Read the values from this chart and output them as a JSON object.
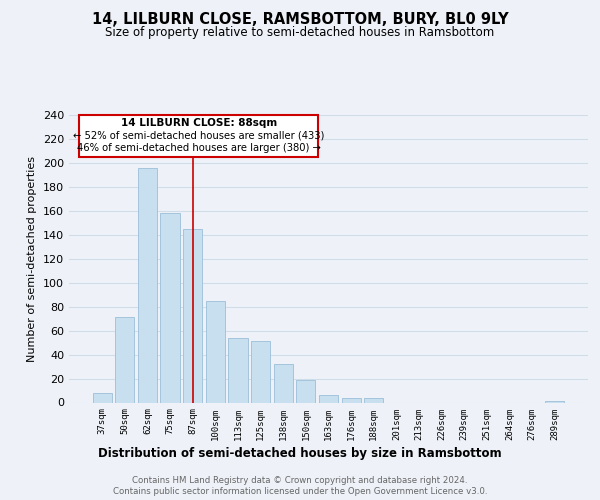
{
  "title": "14, LILBURN CLOSE, RAMSBOTTOM, BURY, BL0 9LY",
  "subtitle": "Size of property relative to semi-detached houses in Ramsbottom",
  "xlabel": "Distribution of semi-detached houses by size in Ramsbottom",
  "ylabel": "Number of semi-detached properties",
  "bin_labels": [
    "37sqm",
    "50sqm",
    "62sqm",
    "75sqm",
    "87sqm",
    "100sqm",
    "113sqm",
    "125sqm",
    "138sqm",
    "150sqm",
    "163sqm",
    "176sqm",
    "188sqm",
    "201sqm",
    "213sqm",
    "226sqm",
    "239sqm",
    "251sqm",
    "264sqm",
    "276sqm",
    "289sqm"
  ],
  "bar_heights": [
    8,
    71,
    196,
    158,
    145,
    85,
    54,
    51,
    32,
    19,
    6,
    4,
    4,
    0,
    0,
    0,
    0,
    0,
    0,
    0,
    1
  ],
  "highlight_bin": 4,
  "property_size": "88sqm",
  "property_name": "14 LILBURN CLOSE",
  "pct_smaller": 52,
  "count_smaller": 433,
  "pct_larger": 46,
  "count_larger": 380,
  "bar_color_normal": "#c8dff0",
  "bar_edge_color": "#9bbfd8",
  "annotation_box_edge": "#cc0000",
  "highlight_line_color": "#cc0000",
  "grid_color": "#d0dce8",
  "background_color": "#eef2f8",
  "ylim": [
    0,
    240
  ],
  "yticks": [
    0,
    20,
    40,
    60,
    80,
    100,
    120,
    140,
    160,
    180,
    200,
    220,
    240
  ],
  "footer_line1": "Contains HM Land Registry data © Crown copyright and database right 2024.",
  "footer_line2": "Contains public sector information licensed under the Open Government Licence v3.0."
}
